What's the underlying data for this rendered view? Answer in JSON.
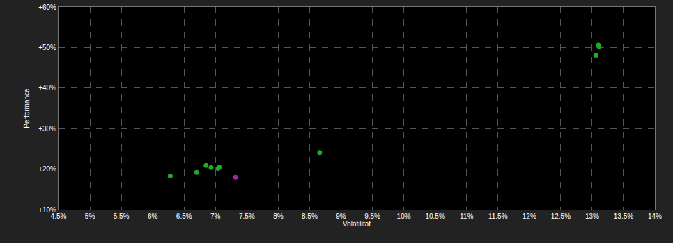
{
  "chart_data": {
    "type": "scatter",
    "x_label": "Volatilität",
    "y_label": "Performance",
    "x": [
      6.28,
      6.7,
      6.85,
      6.93,
      7.04,
      7.06,
      7.32,
      8.66,
      13.06,
      13.1,
      13.11
    ],
    "values": [
      18.3,
      19.2,
      20.9,
      20.4,
      20.2,
      20.5,
      18.0,
      24.1,
      48.1,
      50.6,
      50.3
    ],
    "colors": [
      "#22aa22",
      "#22aa22",
      "#22aa22",
      "#22aa22",
      "#22aa22",
      "#22aa22",
      "#aa22aa",
      "#22aa22",
      "#22aa22",
      "#22aa22",
      "#22aa22"
    ],
    "marker": "circle",
    "xlim": [
      4.5,
      14
    ],
    "ylim": [
      10,
      60
    ],
    "xticks": [
      {
        "value": 4.5,
        "label": "4.5%"
      },
      {
        "value": 5,
        "label": "5%"
      },
      {
        "value": 5.5,
        "label": "5.5%"
      },
      {
        "value": 6,
        "label": "6%"
      },
      {
        "value": 6.5,
        "label": "6.5%"
      },
      {
        "value": 7,
        "label": "7%"
      },
      {
        "value": 7.5,
        "label": "7.5%"
      },
      {
        "value": 8,
        "label": "8%"
      },
      {
        "value": 8.5,
        "label": "8.5%"
      },
      {
        "value": 9,
        "label": "9%"
      },
      {
        "value": 9.5,
        "label": "9.5%"
      },
      {
        "value": 10,
        "label": "10%"
      },
      {
        "value": 10.5,
        "label": "10.5%"
      },
      {
        "value": 11,
        "label": "11%"
      },
      {
        "value": 11.5,
        "label": "11.5%"
      },
      {
        "value": 12,
        "label": "12%"
      },
      {
        "value": 12.5,
        "label": "12.5%"
      },
      {
        "value": 13,
        "label": "13%"
      },
      {
        "value": 13.5,
        "label": "13.5%"
      },
      {
        "value": 14,
        "label": "14%"
      }
    ],
    "yticks": [
      {
        "value": 10,
        "label": "+10%"
      },
      {
        "value": 20,
        "label": "+20%"
      },
      {
        "value": 30,
        "label": "+30%"
      },
      {
        "value": 40,
        "label": "+40%"
      },
      {
        "value": 50,
        "label": "+50%"
      },
      {
        "value": 60,
        "label": "+60%"
      }
    ],
    "grid": true
  }
}
